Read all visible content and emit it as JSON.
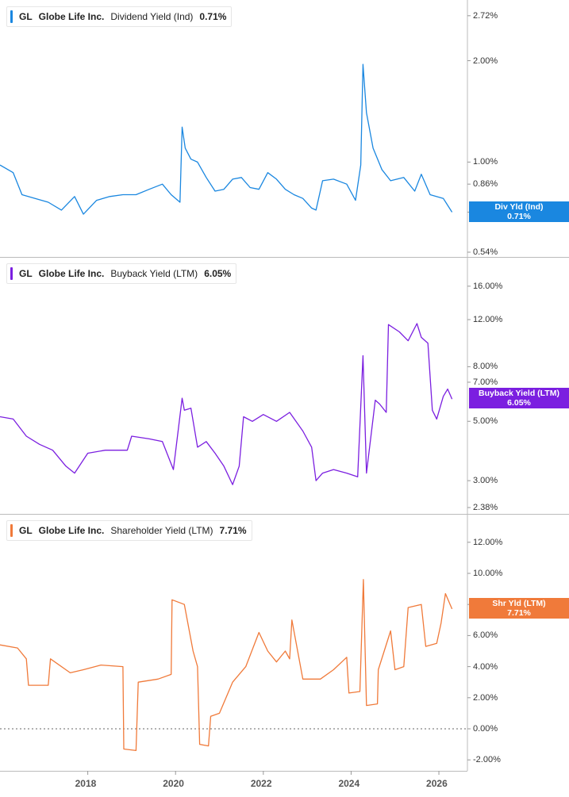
{
  "chart_data": [
    {
      "type": "line",
      "ticker": "GL",
      "company": "Globe Life Inc.",
      "metric": "Dividend Yield (Ind)",
      "latest_value": "0.71%",
      "tag": {
        "line1": "Div Yld (Ind)",
        "line2": "0.71%"
      },
      "color": "#1a87e0",
      "scale": "log",
      "ylim": [
        0.54,
        2.9
      ],
      "yticks": [
        {
          "v": 2.72,
          "label": "2.72%"
        },
        {
          "v": 2.0,
          "label": "2.00%"
        },
        {
          "v": 1.0,
          "label": "1.00%"
        },
        {
          "v": 0.86,
          "label": "0.86%"
        },
        {
          "v": 0.71,
          "label": "0.71%"
        },
        {
          "v": 0.54,
          "label": "0.54%"
        }
      ],
      "series": [
        {
          "x": [
            2016.0,
            2016.3,
            2016.5,
            2016.8,
            2017.1,
            2017.4,
            2017.7,
            2017.9,
            2018.2,
            2018.5,
            2018.8,
            2019.1,
            2019.4,
            2019.7,
            2019.9,
            2020.1,
            2020.15,
            2020.22,
            2020.35,
            2020.5,
            2020.7,
            2020.9,
            2021.1,
            2021.3,
            2021.5,
            2021.7,
            2021.9,
            2022.1,
            2022.3,
            2022.5,
            2022.7,
            2022.9,
            2023.1,
            2023.2,
            2023.35,
            2023.6,
            2023.9,
            2024.1,
            2024.22,
            2024.27,
            2024.35,
            2024.5,
            2024.7,
            2024.9,
            2025.2,
            2025.45,
            2025.6,
            2025.8,
            2026.1,
            2026.3
          ],
          "y": [
            0.98,
            0.93,
            0.8,
            0.78,
            0.76,
            0.72,
            0.79,
            0.7,
            0.77,
            0.79,
            0.8,
            0.8,
            0.83,
            0.86,
            0.8,
            0.76,
            1.27,
            1.1,
            1.02,
            1.0,
            0.9,
            0.82,
            0.83,
            0.89,
            0.9,
            0.84,
            0.83,
            0.93,
            0.89,
            0.83,
            0.8,
            0.78,
            0.73,
            0.72,
            0.88,
            0.89,
            0.86,
            0.77,
            0.98,
            1.95,
            1.4,
            1.1,
            0.95,
            0.88,
            0.9,
            0.82,
            0.92,
            0.8,
            0.78,
            0.71
          ]
        }
      ]
    },
    {
      "type": "line",
      "ticker": "GL",
      "company": "Globe Life Inc.",
      "metric": "Buyback Yield (LTM)",
      "latest_value": "6.05%",
      "tag": {
        "line1": "Buyback Yield (LTM)",
        "line2": "6.05%"
      },
      "color": "#7b1fe0",
      "scale": "log",
      "ylim": [
        2.38,
        17.0
      ],
      "yticks": [
        {
          "v": 16.0,
          "label": "16.00%"
        },
        {
          "v": 12.0,
          "label": "12.00%"
        },
        {
          "v": 8.0,
          "label": "8.00%"
        },
        {
          "v": 7.0,
          "label": "7.00%"
        },
        {
          "v": 5.0,
          "label": "5.00%"
        },
        {
          "v": 3.0,
          "label": "3.00%"
        },
        {
          "v": 2.38,
          "label": "2.38%"
        }
      ],
      "series": [
        {
          "x": [
            2016.0,
            2016.3,
            2016.6,
            2016.9,
            2017.2,
            2017.5,
            2017.7,
            2018.0,
            2018.4,
            2018.9,
            2019.0,
            2019.4,
            2019.7,
            2019.95,
            2020.15,
            2020.2,
            2020.35,
            2020.5,
            2020.7,
            2020.9,
            2021.1,
            2021.3,
            2021.45,
            2021.55,
            2021.75,
            2022.0,
            2022.3,
            2022.6,
            2022.9,
            2023.1,
            2023.2,
            2023.35,
            2023.6,
            2023.9,
            2024.15,
            2024.27,
            2024.35,
            2024.55,
            2024.65,
            2024.8,
            2024.85,
            2025.1,
            2025.3,
            2025.5,
            2025.6,
            2025.75,
            2025.85,
            2025.95,
            2026.1,
            2026.2,
            2026.3
          ],
          "y": [
            5.2,
            5.1,
            4.4,
            4.1,
            3.9,
            3.4,
            3.2,
            3.8,
            3.9,
            3.9,
            4.4,
            4.3,
            4.2,
            3.3,
            6.1,
            5.5,
            5.6,
            4.0,
            4.2,
            3.8,
            3.4,
            2.9,
            3.4,
            5.2,
            5.0,
            5.3,
            5.0,
            5.4,
            4.6,
            4.0,
            3.0,
            3.2,
            3.3,
            3.2,
            3.1,
            8.8,
            3.2,
            6.0,
            5.8,
            5.4,
            11.5,
            10.8,
            10.0,
            11.6,
            10.3,
            9.8,
            5.5,
            5.1,
            6.2,
            6.6,
            6.05
          ]
        }
      ]
    },
    {
      "type": "line",
      "ticker": "GL",
      "company": "Globe Life Inc.",
      "metric": "Shareholder Yield (LTM)",
      "latest_value": "7.71%",
      "tag": {
        "line1": "Shr Yld (LTM)",
        "line2": "7.71%"
      },
      "color": "#f07a3a",
      "scale": "linear",
      "ylim": [
        -2.5,
        12.5
      ],
      "yticks": [
        {
          "v": 12,
          "label": "12.00%"
        },
        {
          "v": 10,
          "label": "10.00%"
        },
        {
          "v": 8,
          "label": "8.00%"
        },
        {
          "v": 6,
          "label": "6.00%"
        },
        {
          "v": 4,
          "label": "4.00%"
        },
        {
          "v": 2,
          "label": "2.00%"
        },
        {
          "v": 0,
          "label": "0.00%"
        },
        {
          "v": -2,
          "label": "-2.00%"
        }
      ],
      "zero_line": true,
      "series": [
        {
          "x": [
            2016.0,
            2016.4,
            2016.6,
            2016.65,
            2017.1,
            2017.15,
            2017.6,
            2017.9,
            2018.3,
            2018.8,
            2018.82,
            2019.1,
            2019.15,
            2019.6,
            2019.9,
            2019.92,
            2020.2,
            2020.4,
            2020.5,
            2020.55,
            2020.75,
            2020.8,
            2021.0,
            2021.3,
            2021.6,
            2021.9,
            2022.1,
            2022.3,
            2022.5,
            2022.6,
            2022.65,
            2022.9,
            2023.3,
            2023.6,
            2023.9,
            2023.95,
            2024.2,
            2024.28,
            2024.35,
            2024.6,
            2024.62,
            2024.9,
            2025.0,
            2025.2,
            2025.3,
            2025.6,
            2025.7,
            2025.95,
            2026.05,
            2026.15,
            2026.3
          ],
          "y": [
            5.4,
            5.2,
            4.5,
            2.8,
            2.8,
            4.5,
            3.6,
            3.8,
            4.1,
            4.0,
            -1.3,
            -1.4,
            3.0,
            3.2,
            3.5,
            8.3,
            8.0,
            5.0,
            4.0,
            -1.0,
            -1.1,
            0.8,
            1.0,
            3.0,
            4.0,
            6.2,
            5.0,
            4.3,
            5.0,
            4.5,
            7.0,
            3.2,
            3.2,
            3.8,
            4.6,
            2.3,
            2.4,
            9.6,
            1.5,
            1.6,
            3.8,
            6.3,
            3.8,
            4.0,
            7.8,
            8.0,
            5.3,
            5.5,
            6.8,
            8.7,
            7.71
          ]
        }
      ]
    }
  ],
  "x_axis": {
    "ticks": [
      {
        "v": 2018,
        "label": "2018"
      },
      {
        "v": 2020,
        "label": "2020"
      },
      {
        "v": 2022,
        "label": "2022"
      },
      {
        "v": 2024,
        "label": "2024"
      },
      {
        "v": 2026,
        "label": "2026"
      }
    ],
    "domain": [
      2016.0,
      2026.65
    ]
  }
}
